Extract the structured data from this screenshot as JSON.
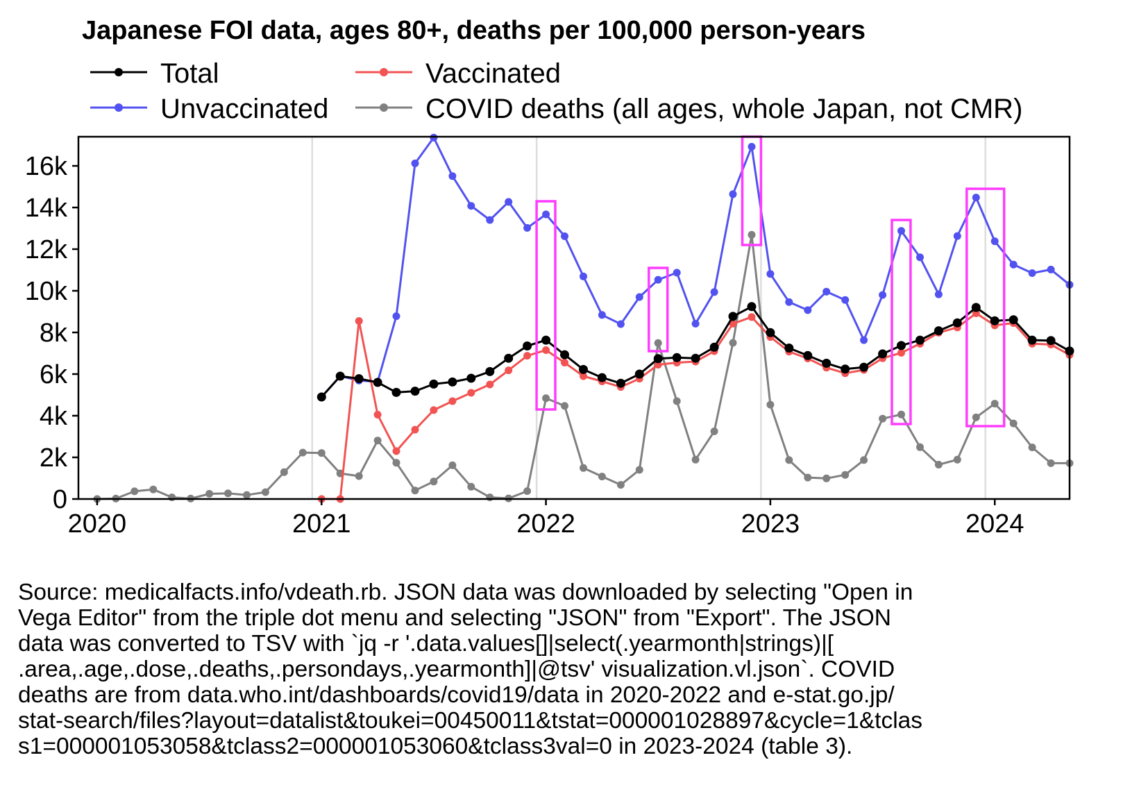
{
  "chart_data": {
    "type": "line",
    "title": "Japanese FOI data, ages 80+, deaths per 100,000 person-years",
    "xlabel": "",
    "ylabel": "",
    "x_ticks": [
      "2020",
      "2021",
      "2022",
      "2023",
      "2024"
    ],
    "y_ticks": [
      "0",
      "2k",
      "4k",
      "6k",
      "8k",
      "10k",
      "12k",
      "14k",
      "16k"
    ],
    "ylim": [
      0,
      17400
    ],
    "xlim": [
      "2019-12",
      "2024-05"
    ],
    "grid": "vertical lines at year boundaries",
    "legend_position": "top, two columns",
    "series": [
      {
        "name": "Total",
        "color": "#000000",
        "points": [
          [
            "2021-01",
            4900
          ],
          [
            "2021-02",
            5900
          ],
          [
            "2021-03",
            5780
          ],
          [
            "2021-04",
            5600
          ],
          [
            "2021-05",
            5120
          ],
          [
            "2021-06",
            5180
          ],
          [
            "2021-07",
            5520
          ],
          [
            "2021-08",
            5620
          ],
          [
            "2021-09",
            5800
          ],
          [
            "2021-10",
            6120
          ],
          [
            "2021-11",
            6760
          ],
          [
            "2021-12",
            7350
          ],
          [
            "2022-01",
            7630
          ],
          [
            "2022-02",
            6930
          ],
          [
            "2022-03",
            6220
          ],
          [
            "2022-04",
            5830
          ],
          [
            "2022-05",
            5560
          ],
          [
            "2022-06",
            6000
          ],
          [
            "2022-07",
            6740
          ],
          [
            "2022-08",
            6790
          ],
          [
            "2022-09",
            6760
          ],
          [
            "2022-10",
            7290
          ],
          [
            "2022-11",
            8770
          ],
          [
            "2022-12",
            9240
          ],
          [
            "2023-01",
            7990
          ],
          [
            "2023-02",
            7250
          ],
          [
            "2023-03",
            6890
          ],
          [
            "2023-04",
            6520
          ],
          [
            "2023-05",
            6240
          ],
          [
            "2023-06",
            6330
          ],
          [
            "2023-07",
            6970
          ],
          [
            "2023-08",
            7370
          ],
          [
            "2023-09",
            7630
          ],
          [
            "2023-10",
            8080
          ],
          [
            "2023-11",
            8460
          ],
          [
            "2023-12",
            9200
          ],
          [
            "2024-01",
            8560
          ],
          [
            "2024-02",
            8610
          ],
          [
            "2024-03",
            7630
          ],
          [
            "2024-04",
            7610
          ],
          [
            "2024-05",
            7110
          ]
        ]
      },
      {
        "name": "Vaccinated",
        "color": "#f25353",
        "points": [
          [
            "2021-01",
            0
          ],
          [
            "2021-02",
            0
          ],
          [
            "2021-03",
            8550
          ],
          [
            "2021-04",
            4050
          ],
          [
            "2021-05",
            2300
          ],
          [
            "2021-06",
            3330
          ],
          [
            "2021-07",
            4270
          ],
          [
            "2021-08",
            4700
          ],
          [
            "2021-09",
            5100
          ],
          [
            "2021-10",
            5500
          ],
          [
            "2021-11",
            6180
          ],
          [
            "2021-12",
            6880
          ],
          [
            "2022-01",
            7150
          ],
          [
            "2022-02",
            6550
          ],
          [
            "2022-03",
            5900
          ],
          [
            "2022-04",
            5650
          ],
          [
            "2022-05",
            5380
          ],
          [
            "2022-06",
            5780
          ],
          [
            "2022-07",
            6450
          ],
          [
            "2022-08",
            6550
          ],
          [
            "2022-09",
            6600
          ],
          [
            "2022-10",
            7100
          ],
          [
            "2022-11",
            8420
          ],
          [
            "2022-12",
            8740
          ],
          [
            "2023-01",
            7780
          ],
          [
            "2023-02",
            7080
          ],
          [
            "2023-03",
            6750
          ],
          [
            "2023-04",
            6310
          ],
          [
            "2023-05",
            6040
          ],
          [
            "2023-06",
            6200
          ],
          [
            "2023-07",
            6760
          ],
          [
            "2023-08",
            7020
          ],
          [
            "2023-09",
            7460
          ],
          [
            "2023-10",
            7990
          ],
          [
            "2023-11",
            8240
          ],
          [
            "2023-12",
            8920
          ],
          [
            "2024-01",
            8340
          ],
          [
            "2024-02",
            8450
          ],
          [
            "2024-03",
            7460
          ],
          [
            "2024-04",
            7420
          ],
          [
            "2024-05",
            6920
          ]
        ]
      },
      {
        "name": "Unvaccinated",
        "color": "#5252f0",
        "points": [
          [
            "2021-01",
            4900
          ],
          [
            "2021-02",
            5900
          ],
          [
            "2021-03",
            5690
          ],
          [
            "2021-04",
            5630
          ],
          [
            "2021-05",
            8780
          ],
          [
            "2021-06",
            16120
          ],
          [
            "2021-07",
            17360
          ],
          [
            "2021-08",
            15510
          ],
          [
            "2021-09",
            14080
          ],
          [
            "2021-10",
            13400
          ],
          [
            "2021-11",
            14270
          ],
          [
            "2021-12",
            13020
          ],
          [
            "2022-01",
            13670
          ],
          [
            "2022-02",
            12620
          ],
          [
            "2022-03",
            10690
          ],
          [
            "2022-04",
            8840
          ],
          [
            "2022-05",
            8400
          ],
          [
            "2022-06",
            9700
          ],
          [
            "2022-07",
            10530
          ],
          [
            "2022-08",
            10870
          ],
          [
            "2022-09",
            8420
          ],
          [
            "2022-10",
            9940
          ],
          [
            "2022-11",
            14640
          ],
          [
            "2022-12",
            16920
          ],
          [
            "2023-01",
            10810
          ],
          [
            "2023-02",
            9460
          ],
          [
            "2023-03",
            9070
          ],
          [
            "2023-04",
            9960
          ],
          [
            "2023-05",
            9560
          ],
          [
            "2023-06",
            7630
          ],
          [
            "2023-07",
            9800
          ],
          [
            "2023-08",
            12880
          ],
          [
            "2023-09",
            11610
          ],
          [
            "2023-10",
            9830
          ],
          [
            "2023-11",
            12630
          ],
          [
            "2023-12",
            14480
          ],
          [
            "2024-01",
            12380
          ],
          [
            "2024-02",
            11260
          ],
          [
            "2024-03",
            10850
          ],
          [
            "2024-04",
            11020
          ],
          [
            "2024-05",
            10290
          ]
        ]
      },
      {
        "name": "COVID deaths (all ages, whole Japan, not CMR)",
        "color": "#808080",
        "points": [
          [
            "2020-01",
            0
          ],
          [
            "2020-02",
            20
          ],
          [
            "2020-03",
            370
          ],
          [
            "2020-04",
            460
          ],
          [
            "2020-05",
            80
          ],
          [
            "2020-06",
            20
          ],
          [
            "2020-07",
            250
          ],
          [
            "2020-08",
            270
          ],
          [
            "2020-09",
            190
          ],
          [
            "2020-10",
            330
          ],
          [
            "2020-11",
            1290
          ],
          [
            "2020-12",
            2230
          ],
          [
            "2021-01",
            2210
          ],
          [
            "2021-02",
            1230
          ],
          [
            "2021-03",
            1100
          ],
          [
            "2021-04",
            2810
          ],
          [
            "2021-05",
            1740
          ],
          [
            "2021-06",
            410
          ],
          [
            "2021-07",
            840
          ],
          [
            "2021-08",
            1620
          ],
          [
            "2021-09",
            590
          ],
          [
            "2021-10",
            80
          ],
          [
            "2021-11",
            30
          ],
          [
            "2021-12",
            380
          ],
          [
            "2022-01",
            4840
          ],
          [
            "2022-02",
            4470
          ],
          [
            "2022-03",
            1490
          ],
          [
            "2022-04",
            1080
          ],
          [
            "2022-05",
            680
          ],
          [
            "2022-06",
            1400
          ],
          [
            "2022-07",
            7490
          ],
          [
            "2022-08",
            4700
          ],
          [
            "2022-09",
            1890
          ],
          [
            "2022-10",
            3250
          ],
          [
            "2022-11",
            7500
          ],
          [
            "2022-12",
            12690
          ],
          [
            "2023-01",
            4530
          ],
          [
            "2023-02",
            1870
          ],
          [
            "2023-03",
            1030
          ],
          [
            "2023-04",
            990
          ],
          [
            "2023-05",
            1160
          ],
          [
            "2023-06",
            1870
          ],
          [
            "2023-07",
            3860
          ],
          [
            "2023-08",
            4060
          ],
          [
            "2023-09",
            2490
          ],
          [
            "2023-10",
            1650
          ],
          [
            "2023-11",
            1890
          ],
          [
            "2023-12",
            3920
          ],
          [
            "2024-01",
            4580
          ],
          [
            "2024-02",
            3630
          ],
          [
            "2024-03",
            2480
          ],
          [
            "2024-04",
            1720
          ],
          [
            "2024-05",
            1720
          ]
        ]
      }
    ],
    "highlight_boxes": [
      {
        "x": [
          "2021-12",
          "2022-02"
        ],
        "y": [
          4300,
          14300
        ]
      },
      {
        "x": [
          "2022-06",
          "2022-08"
        ],
        "y": [
          7100,
          11100
        ]
      },
      {
        "x": [
          "2022-11",
          "2023-01"
        ],
        "y": [
          12200,
          17400
        ]
      },
      {
        "x": [
          "2023-07",
          "2023-09"
        ],
        "y": [
          3600,
          13400
        ]
      },
      {
        "x": [
          "2023-11",
          "2024-02"
        ],
        "y": [
          3500,
          14900
        ]
      }
    ],
    "highlight_color": "#ff3cff"
  },
  "source_text": "Source: medicalfacts.info/vdeath.rb. JSON data was downloaded by selecting \"Open in\nVega Editor\" from the triple dot menu and selecting \"JSON\" from \"Export\". The JSON\ndata was converted to TSV with `jq -r '.data.values[]|select(.yearmonth|strings)|[\n.area,.age,.dose,.deaths,.persondays,.yearmonth]|@tsv' visualization.vl.json`. COVID\ndeaths are from data.who.int/dashboards/covid19/data in 2020-2022 and e-stat.go.jp/\nstat-search/files?layout=datalist&toukei=00450011&tstat=000001028897&cycle=1&tclas\ns1=000001053058&tclass2=000001053060&tclass3val=0 in 2023-2024 (table 3)."
}
